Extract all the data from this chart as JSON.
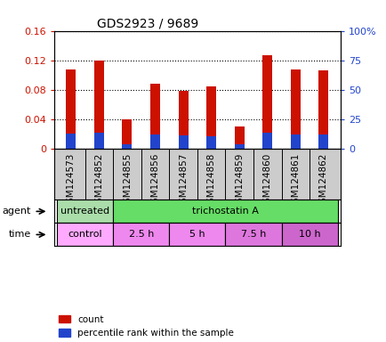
{
  "title": "GDS2923 / 9689",
  "samples": [
    "GSM124573",
    "GSM124852",
    "GSM124855",
    "GSM124856",
    "GSM124857",
    "GSM124858",
    "GSM124859",
    "GSM124860",
    "GSM124861",
    "GSM124862"
  ],
  "count_values": [
    0.108,
    0.12,
    0.04,
    0.088,
    0.079,
    0.085,
    0.03,
    0.127,
    0.108,
    0.107
  ],
  "percentile_values": [
    0.021,
    0.022,
    0.007,
    0.02,
    0.018,
    0.017,
    0.006,
    0.022,
    0.02,
    0.02
  ],
  "ylim_left": [
    0,
    0.16
  ],
  "ylim_right": [
    0,
    100
  ],
  "yticks_left": [
    0,
    0.04,
    0.08,
    0.12,
    0.16
  ],
  "ytick_labels_left": [
    "0",
    "0.04",
    "0.08",
    "0.12",
    "0.16"
  ],
  "yticks_right": [
    0,
    25,
    50,
    75,
    100
  ],
  "ytick_labels_right": [
    "0",
    "25",
    "50",
    "75",
    "100%"
  ],
  "count_color": "#cc1100",
  "percentile_color": "#2244cc",
  "bar_width": 0.35,
  "agent_groups": [
    {
      "label": "untreated",
      "start": 0,
      "end": 2
    },
    {
      "label": "trichostatin A",
      "start": 2,
      "end": 10
    }
  ],
  "agent_colors": [
    "#aaddaa",
    "#66dd66"
  ],
  "time_groups": [
    {
      "label": "control",
      "start": 0,
      "end": 2
    },
    {
      "label": "2.5 h",
      "start": 2,
      "end": 4
    },
    {
      "label": "5 h",
      "start": 4,
      "end": 6
    },
    {
      "label": "7.5 h",
      "start": 6,
      "end": 8
    },
    {
      "label": "10 h",
      "start": 8,
      "end": 10
    }
  ],
  "time_colors": [
    "#ffaaff",
    "#ee88ee",
    "#ee88ee",
    "#dd77dd",
    "#cc66cc"
  ],
  "label_bg_color": "#cccccc",
  "background_color": "#ffffff",
  "tick_color_left": "#cc1100",
  "tick_color_right": "#2244cc"
}
